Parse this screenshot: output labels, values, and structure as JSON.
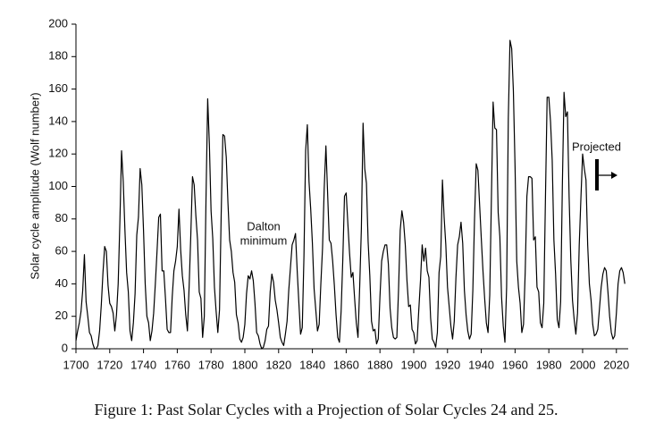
{
  "chart_data": {
    "type": "line",
    "y_label": "Solar cycle amplitude (Wolf number)",
    "caption": "Figure 1: Past Solar Cycles with a Projection of Solar Cycles 24 and 25.",
    "annotations": [
      "Dalton",
      "minimum",
      "Projected"
    ],
    "xlim": [
      1700,
      2027
    ],
    "ylim": [
      0,
      200
    ],
    "xticks": [
      1700,
      1720,
      1740,
      1760,
      1780,
      1800,
      1820,
      1840,
      1860,
      1880,
      1900,
      1920,
      1940,
      1960,
      1980,
      2000,
      2020
    ],
    "yticks": [
      0,
      20,
      40,
      60,
      80,
      100,
      120,
      140,
      160,
      180,
      200
    ],
    "color": "#000000",
    "x": [
      1700,
      1701,
      1702,
      1703,
      1704,
      1705,
      1706,
      1707,
      1708,
      1709,
      1710,
      1711,
      1712,
      1713,
      1714,
      1715,
      1716,
      1717,
      1718,
      1719,
      1720,
      1721,
      1722,
      1723,
      1724,
      1725,
      1726,
      1727,
      1728,
      1729,
      1730,
      1731,
      1732,
      1733,
      1734,
      1735,
      1736,
      1737,
      1738,
      1739,
      1740,
      1741,
      1742,
      1743,
      1744,
      1745,
      1746,
      1747,
      1748,
      1749,
      1750,
      1751,
      1752,
      1753,
      1754,
      1755,
      1756,
      1757,
      1758,
      1759,
      1760,
      1761,
      1762,
      1763,
      1764,
      1765,
      1766,
      1767,
      1768,
      1769,
      1770,
      1771,
      1772,
      1773,
      1774,
      1775,
      1776,
      1777,
      1778,
      1779,
      1780,
      1781,
      1782,
      1783,
      1784,
      1785,
      1786,
      1787,
      1788,
      1789,
      1790,
      1791,
      1792,
      1793,
      1794,
      1795,
      1796,
      1797,
      1798,
      1799,
      1800,
      1801,
      1802,
      1803,
      1804,
      1805,
      1806,
      1807,
      1808,
      1809,
      1810,
      1811,
      1812,
      1813,
      1814,
      1815,
      1816,
      1817,
      1818,
      1819,
      1820,
      1821,
      1822,
      1823,
      1824,
      1825,
      1826,
      1827,
      1828,
      1829,
      1830,
      1831,
      1832,
      1833,
      1834,
      1835,
      1836,
      1837,
      1838,
      1839,
      1840,
      1841,
      1842,
      1843,
      1844,
      1845,
      1846,
      1847,
      1848,
      1849,
      1850,
      1851,
      1852,
      1853,
      1854,
      1855,
      1856,
      1857,
      1858,
      1859,
      1860,
      1861,
      1862,
      1863,
      1864,
      1865,
      1866,
      1867,
      1868,
      1869,
      1870,
      1871,
      1872,
      1873,
      1874,
      1875,
      1876,
      1877,
      1878,
      1879,
      1880,
      1881,
      1882,
      1883,
      1884,
      1885,
      1886,
      1887,
      1888,
      1889,
      1890,
      1891,
      1892,
      1893,
      1894,
      1895,
      1896,
      1897,
      1898,
      1899,
      1900,
      1901,
      1902,
      1903,
      1904,
      1905,
      1906,
      1907,
      1908,
      1909,
      1910,
      1911,
      1912,
      1913,
      1914,
      1915,
      1916,
      1917,
      1918,
      1919,
      1920,
      1921,
      1922,
      1923,
      1924,
      1925,
      1926,
      1927,
      1928,
      1929,
      1930,
      1931,
      1932,
      1933,
      1934,
      1935,
      1936,
      1937,
      1938,
      1939,
      1940,
      1941,
      1942,
      1943,
      1944,
      1945,
      1946,
      1947,
      1948,
      1949,
      1950,
      1951,
      1952,
      1953,
      1954,
      1955,
      1956,
      1957,
      1958,
      1959,
      1960,
      1961,
      1962,
      1963,
      1964,
      1965,
      1966,
      1967,
      1968,
      1969,
      1970,
      1971,
      1972,
      1973,
      1974,
      1975,
      1976,
      1977,
      1978,
      1979,
      1980,
      1981,
      1982,
      1983,
      1984,
      1985,
      1986,
      1987,
      1988,
      1989,
      1990,
      1991,
      1992,
      1993,
      1994,
      1995,
      1996,
      1997,
      1998,
      1999,
      2000,
      2001,
      2002,
      2003,
      2004,
      2005,
      2006,
      2007,
      2008,
      2009,
      2010,
      2011,
      2012,
      2013,
      2014,
      2015,
      2016,
      2017,
      2018,
      2019,
      2020,
      2021,
      2022,
      2023,
      2024,
      2025
    ],
    "values": [
      5,
      11,
      16,
      23,
      36,
      58,
      29,
      20,
      10,
      8,
      3,
      0,
      0,
      2,
      11,
      27,
      47,
      63,
      60,
      39,
      28,
      26,
      22,
      11,
      21,
      40,
      78,
      122,
      103,
      73,
      47,
      35,
      11,
      5,
      16,
      34,
      70,
      81,
      111,
      101,
      73,
      40,
      20,
      16,
      5,
      11,
      22,
      40,
      60,
      81,
      83,
      48,
      48,
      31,
      12,
      10,
      10,
      32,
      48,
      54,
      63,
      86,
      61,
      45,
      36,
      21,
      11,
      38,
      70,
      106,
      101,
      82,
      67,
      35,
      31,
      7,
      20,
      92,
      154,
      126,
      85,
      68,
      38,
      23,
      10,
      24,
      83,
      132,
      131,
      118,
      90,
      67,
      60,
      47,
      41,
      21,
      16,
      6,
      4,
      7,
      15,
      34,
      45,
      43,
      48,
      42,
      28,
      10,
      8,
      3,
      0,
      1,
      5,
      12,
      14,
      35,
      46,
      41,
      30,
      24,
      16,
      7,
      4,
      2,
      9,
      17,
      36,
      50,
      64,
      67,
      71,
      48,
      28,
      9,
      13,
      57,
      122,
      138,
      103,
      86,
      65,
      37,
      24,
      11,
      15,
      40,
      62,
      99,
      125,
      96,
      67,
      65,
      54,
      39,
      21,
      7,
      4,
      23,
      55,
      94,
      96,
      77,
      59,
      44,
      47,
      31,
      16,
      7,
      38,
      74,
      139,
      111,
      102,
      66,
      45,
      17,
      11,
      12,
      3,
      6,
      32,
      54,
      60,
      64,
      64,
      52,
      25,
      13,
      7,
      6,
      7,
      36,
      73,
      85,
      78,
      64,
      42,
      26,
      27,
      12,
      10,
      3,
      5,
      24,
      42,
      64,
      54,
      62,
      48,
      44,
      19,
      6,
      4,
      1,
      10,
      47,
      57,
      104,
      81,
      64,
      38,
      26,
      14,
      6,
      17,
      44,
      64,
      69,
      78,
      65,
      36,
      21,
      11,
      6,
      9,
      36,
      80,
      114,
      110,
      89,
      68,
      48,
      31,
      16,
      10,
      33,
      93,
      152,
      136,
      135,
      84,
      69,
      32,
      14,
      4,
      38,
      142,
      190,
      185,
      159,
      112,
      54,
      38,
      28,
      10,
      15,
      47,
      94,
      106,
      106,
      105,
      67,
      69,
      38,
      35,
      16,
      13,
      28,
      93,
      155,
      155,
      140,
      116,
      67,
      46,
      18,
      13,
      29,
      100,
      158,
      143,
      146,
      94,
      55,
      30,
      18,
      9,
      22,
      64,
      93,
      120,
      111,
      104,
      64,
      40,
      30,
      15,
      8,
      9,
      12,
      25,
      38,
      46,
      50,
      48,
      35,
      20,
      10,
      6,
      8,
      22,
      40,
      48,
      50,
      47,
      40
    ]
  }
}
